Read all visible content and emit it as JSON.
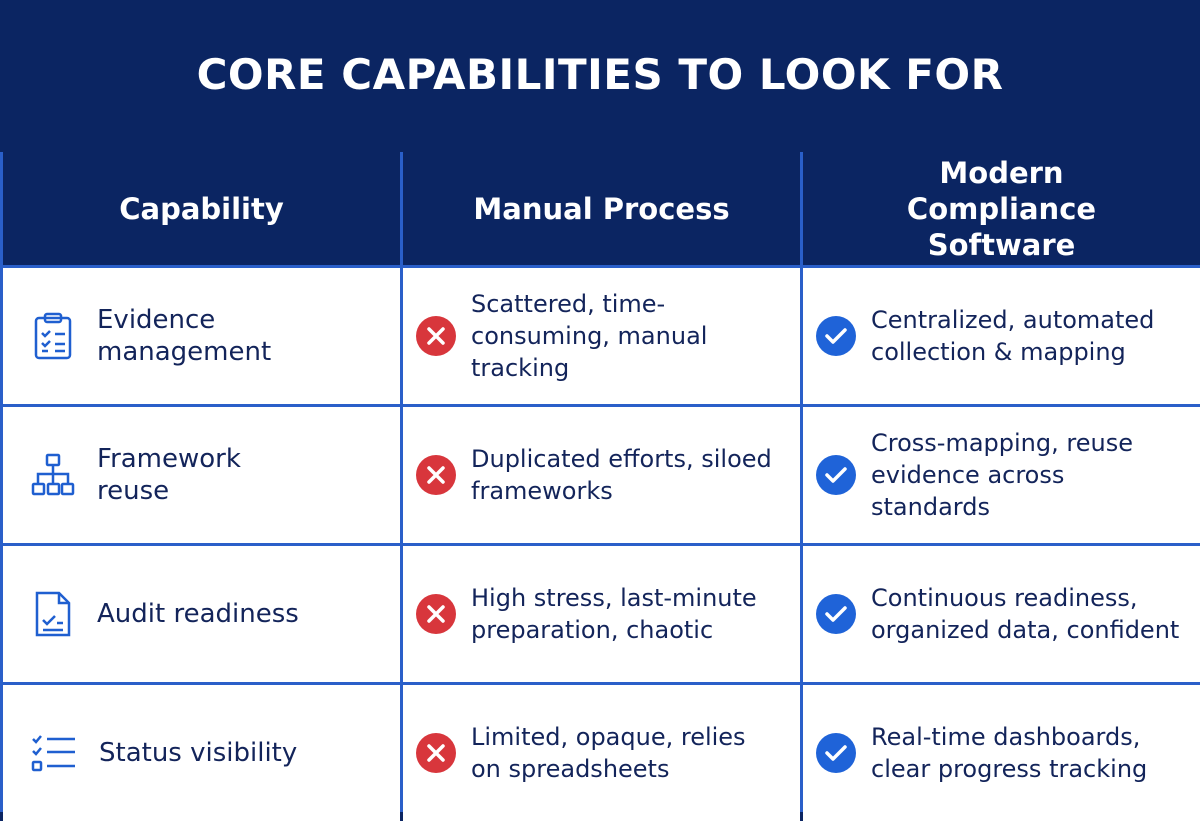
{
  "title": "CORE CAPABILITIES TO LOOK FOR",
  "table": {
    "header": [
      "Capability",
      "Manual Process",
      "Modern Compliance Software"
    ],
    "rows": [
      [
        "Evidence management",
        "Scattered, time-consuming, manual tracking",
        "Centralized, automated collection & mapping"
      ],
      [
        "Framework reuse",
        "Duplicated efforts, siloed frameworks",
        "Cross-mapping, reuse evidence across standards"
      ],
      [
        "Audit readiness",
        "High stress, last-minute preparation, chaotic",
        "Continuous readiness, organized data, confident"
      ],
      [
        "Status visibility",
        "Limited, opaque, relies on spreadsheets",
        "Real-time dashboards, clear progress tracking"
      ]
    ]
  }
}
